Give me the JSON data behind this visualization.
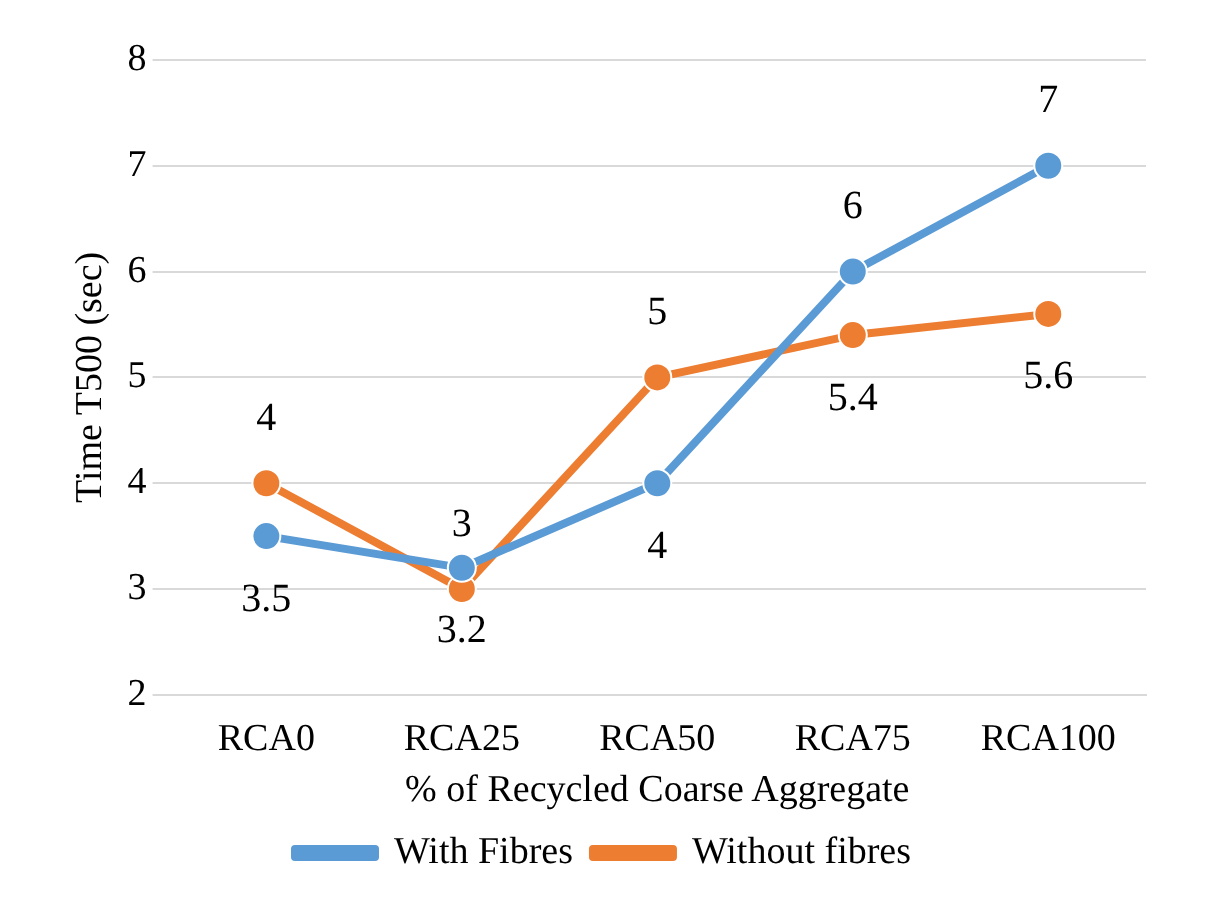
{
  "chart_data": {
    "type": "line",
    "xlabel": "% of Recycled Coarse Aggregate",
    "ylabel": "Time T500 (sec)",
    "categories": [
      "RCA0",
      "RCA25",
      "RCA50",
      "RCA75",
      "RCA100"
    ],
    "series": [
      {
        "name": "With Fibres",
        "color": "#5b9bd5",
        "values": [
          3.5,
          3.2,
          4,
          6,
          7
        ]
      },
      {
        "name": "Without fibres",
        "color": "#ed7d31",
        "values": [
          4,
          3,
          5,
          5.4,
          5.6
        ]
      }
    ],
    "ylim": [
      2,
      8
    ],
    "yticks": [
      2,
      3,
      4,
      5,
      6,
      7,
      8
    ],
    "grid": "y",
    "legend": "bottom",
    "marker": "circle",
    "line_style": "solid",
    "data_labels": true
  }
}
